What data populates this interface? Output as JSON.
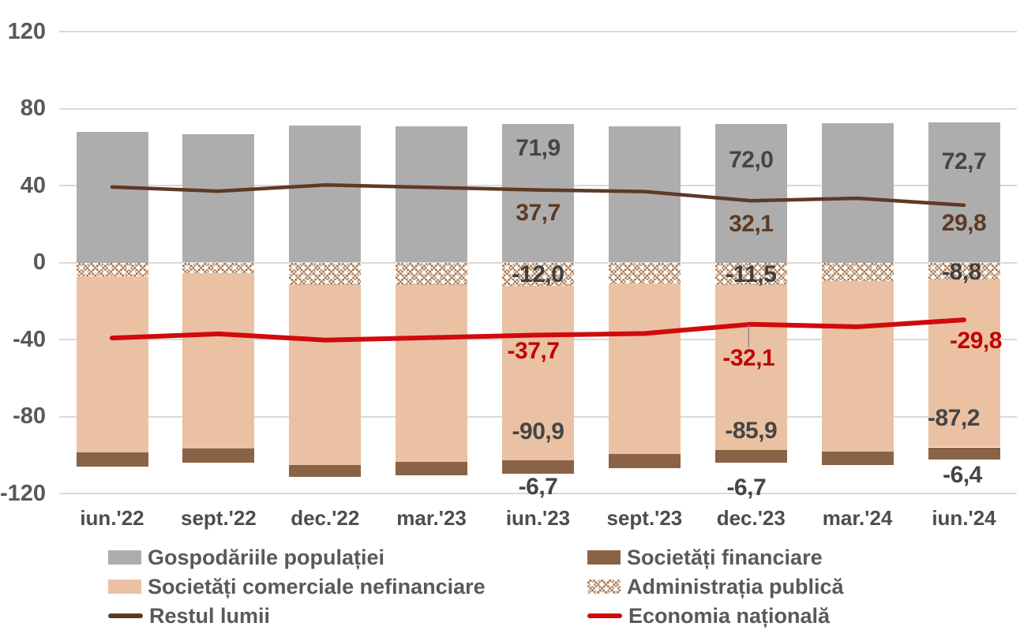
{
  "chart_data": {
    "type": "bar",
    "subtype": "stacked-bar-with-lines",
    "title": "",
    "categories": [
      "iun.'22",
      "sept.'22",
      "dec.'22",
      "mar.'23",
      "iun.'23",
      "sept.'23",
      "dec.'23",
      "mar.'24",
      "iun.'24"
    ],
    "y_ticks": [
      120,
      80,
      40,
      0,
      -40,
      -80,
      -120
    ],
    "ylim": [
      -120,
      120
    ],
    "grid": "horizontal",
    "legend_position": "bottom-two-columns",
    "bar_series": [
      {
        "name": "Gospodăriile populației",
        "color": "#adadad",
        "pattern": false,
        "values": [
          67.9,
          66.5,
          71.2,
          70.8,
          71.9,
          70.6,
          72.0,
          72.4,
          72.7
        ]
      },
      {
        "name": "Administrația publică",
        "color": "#a1714f",
        "pattern": true,
        "values": [
          -7.0,
          -5.6,
          -11.6,
          -11.7,
          -12.0,
          -10.7,
          -11.5,
          -9.7,
          -8.8
        ]
      },
      {
        "name": "Societăți comerciale nefinanciare",
        "color": "#eac1a3",
        "pattern": false,
        "values": [
          -91.5,
          -91.0,
          -93.5,
          -91.8,
          -90.9,
          -88.6,
          -85.9,
          -88.4,
          -87.2
        ]
      },
      {
        "name": "Societăți financiare",
        "color": "#8a6246",
        "pattern": false,
        "values": [
          -7.5,
          -7.5,
          -6.3,
          -6.9,
          -6.7,
          -7.7,
          -6.7,
          -7.3,
          -6.4
        ]
      }
    ],
    "line_series": [
      {
        "name": "Restul lumii",
        "color": "#5d3a24",
        "width": 4.5,
        "values": [
          39.2,
          37.1,
          40.3,
          39.0,
          37.7,
          36.9,
          32.1,
          33.4,
          29.8
        ]
      },
      {
        "name": "Economia națională",
        "color": "#d10a0d",
        "width": 6,
        "values": [
          -39.2,
          -37.1,
          -40.3,
          -39.0,
          -37.7,
          -36.9,
          -32.1,
          -33.4,
          -29.8
        ]
      }
    ],
    "data_labels": [
      {
        "cat": 4,
        "text": "71,9",
        "y": 59.5,
        "color": "#454545",
        "dx": 0
      },
      {
        "cat": 4,
        "text": "37,7",
        "y": 25.5,
        "color": "#5d3a24",
        "dx": 0
      },
      {
        "cat": 4,
        "text": "-12,0",
        "y": -6.3,
        "color": "#3f3f3f",
        "dx": 0
      },
      {
        "cat": 4,
        "text": "-37,7",
        "y": -46,
        "color": "#c00404",
        "dx": -6
      },
      {
        "cat": 4,
        "text": "-90,9",
        "y": -88,
        "color": "#454545",
        "dx": 0
      },
      {
        "cat": 4,
        "text": "-6,7",
        "y": -116.5,
        "color": "#454545",
        "dx": 0
      },
      {
        "cat": 6,
        "text": "72,0",
        "y": 53,
        "color": "#454545",
        "dx": 0
      },
      {
        "cat": 6,
        "text": "32,1",
        "y": 20,
        "color": "#5d3a24",
        "dx": 0
      },
      {
        "cat": 6,
        "text": "-11,5",
        "y": -6.3,
        "color": "#3f3f3f",
        "dx": 0
      },
      {
        "cat": 6,
        "text": "-32,1",
        "y": -50,
        "color": "#c00404",
        "dx": -3
      },
      {
        "cat": 6,
        "text": "-85,9",
        "y": -87.5,
        "color": "#454545",
        "dx": 0
      },
      {
        "cat": 6,
        "text": "-6,7",
        "y": -117,
        "color": "#454545",
        "dx": -6
      },
      {
        "cat": 8,
        "text": "72,7",
        "y": 52.5,
        "color": "#454545",
        "dx": 0
      },
      {
        "cat": 8,
        "text": "29,8",
        "y": 20.5,
        "color": "#5d3a24",
        "dx": 0
      },
      {
        "cat": 8,
        "text": "-8,8",
        "y": -5.2,
        "color": "#3f3f3f",
        "dx": -3
      },
      {
        "cat": 8,
        "text": "-29,8",
        "y": -41,
        "color": "#c00404",
        "dx": 15
      },
      {
        "cat": 8,
        "text": "-87,2",
        "y": -81,
        "color": "#454545",
        "dx": -13
      },
      {
        "cat": 8,
        "text": "-6,4",
        "y": -110.5,
        "color": "#454545",
        "dx": -2
      }
    ],
    "leader_line": {
      "cat": 6,
      "x_offset": -3,
      "y_from": -32.5,
      "y_to": -44,
      "color": "#8c8c8c"
    }
  },
  "legend": {
    "columns": [
      {
        "items": [
          {
            "label": "Gospodăriile populației",
            "swatch": "fill",
            "color": "#adadad"
          },
          {
            "label": "Societăți comerciale nefinanciare",
            "swatch": "fill",
            "color": "#eac1a3"
          },
          {
            "label": "Restul lumii",
            "swatch": "line",
            "color": "#5d3a24"
          }
        ]
      },
      {
        "items": [
          {
            "label": "Societăți financiare",
            "swatch": "fill",
            "color": "#8a6246"
          },
          {
            "label": "Administrația publică",
            "swatch": "pattern",
            "color": "#a1714f"
          },
          {
            "label": "Economia națională",
            "swatch": "line",
            "color": "#d10a0d"
          }
        ]
      }
    ]
  }
}
